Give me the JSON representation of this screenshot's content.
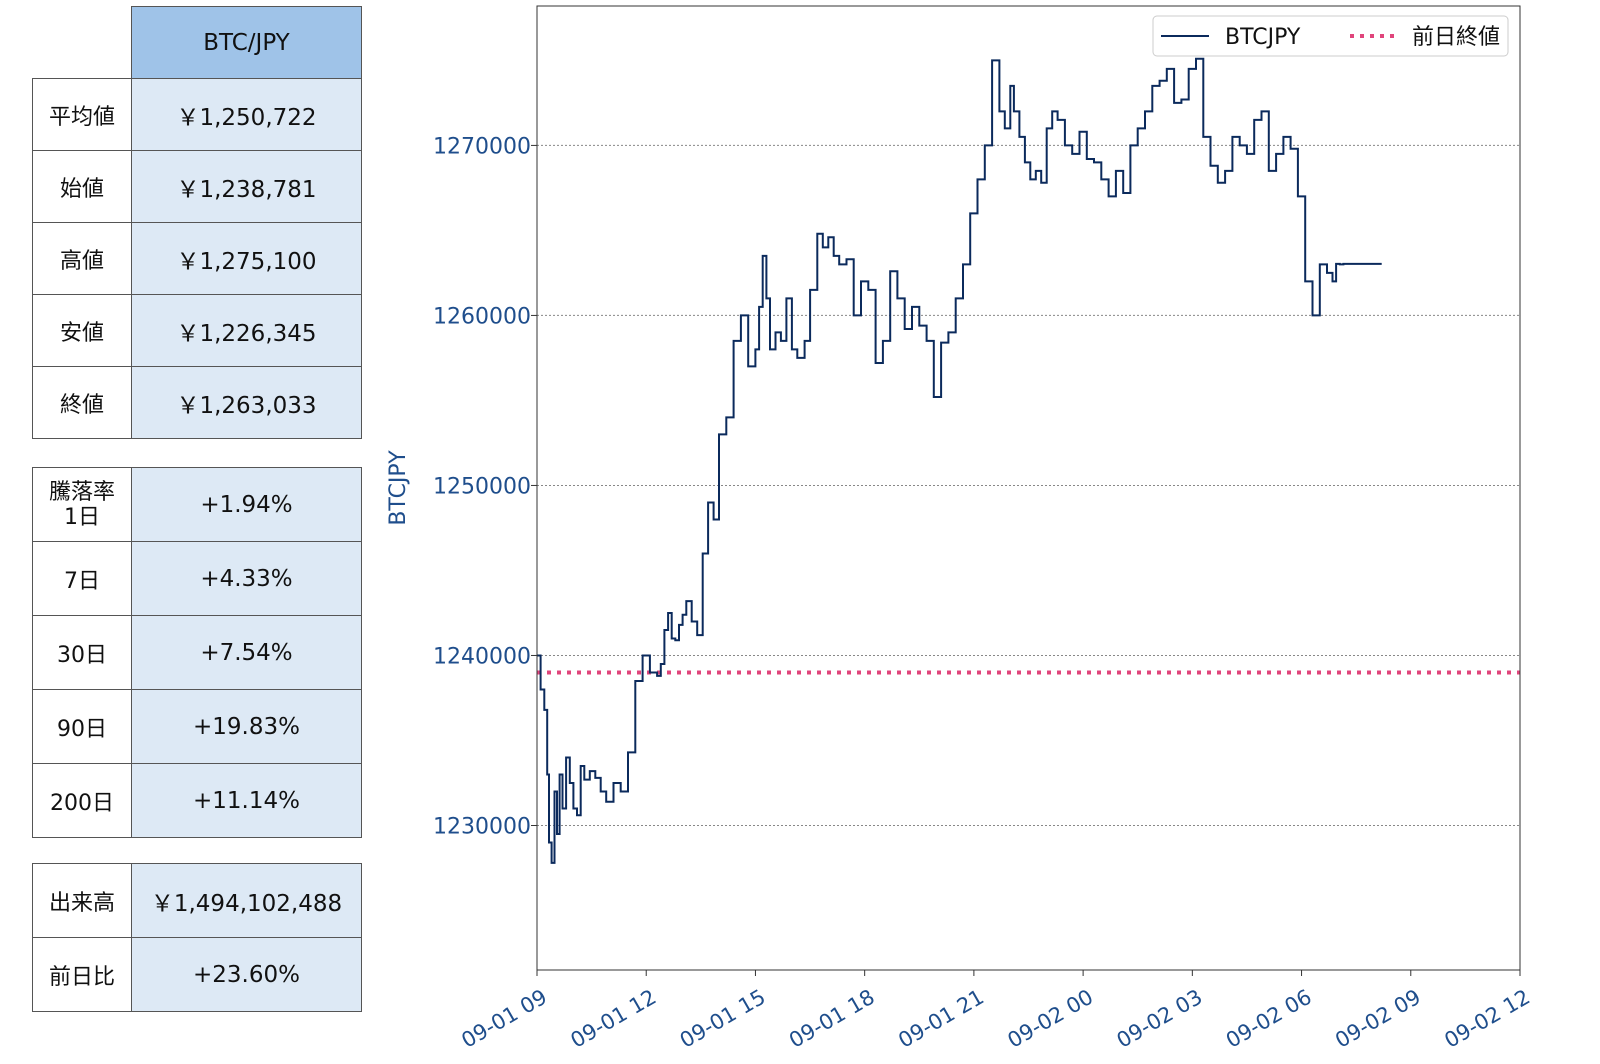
{
  "stats_table": {
    "header": "BTC/JPY",
    "rows": [
      {
        "label": "平均値",
        "value": "￥1,250,722"
      },
      {
        "label": "始値",
        "value": "￥1,238,781"
      },
      {
        "label": "高値",
        "value": "￥1,275,100"
      },
      {
        "label": "安値",
        "value": "￥1,226,345"
      },
      {
        "label": "終値",
        "value": "￥1,263,033"
      }
    ]
  },
  "change_table": {
    "rows": [
      {
        "label_line1": "騰落率",
        "label_line2": "1日",
        "value": "+1.94%"
      },
      {
        "label": "7日",
        "value": "+4.33%"
      },
      {
        "label": "30日",
        "value": "+7.54%"
      },
      {
        "label": "90日",
        "value": "+19.83%"
      },
      {
        "label": "200日",
        "value": "+11.14%"
      }
    ]
  },
  "volume_table": {
    "rows": [
      {
        "label": "出来高",
        "value": "￥1,494,102,488"
      },
      {
        "label": "前日比",
        "value": "+23.60%"
      }
    ]
  },
  "colors": {
    "line": "#0b2a5c",
    "ref_line": "#e0457b",
    "axis_text": "#1f4e8c",
    "header_bg": "#9fc3e8",
    "value_bg": "#dde9f5"
  },
  "chart_data": {
    "type": "line",
    "ylabel": "BTCJPY",
    "ylim": [
      1221500,
      1278200
    ],
    "yticks": [
      1230000,
      1240000,
      1250000,
      1260000,
      1270000
    ],
    "ytick_labels": [
      "1230000",
      "1240000",
      "1250000",
      "1260000",
      "1270000"
    ],
    "x_ticks": [
      "09-01 09",
      "09-01 12",
      "09-01 15",
      "09-01 18",
      "09-01 21",
      "09-02 00",
      "09-02 03",
      "09-02 06",
      "09-02 09",
      "09-02 12"
    ],
    "x_range_hours": [
      0,
      27
    ],
    "grid": "horizontal",
    "legend": {
      "placement": "top-right",
      "entries": [
        "BTCJPY",
        "前日終値"
      ]
    },
    "ref_line": {
      "name": "前日終値",
      "value": 1239000,
      "style": "dotted"
    },
    "series": [
      {
        "name": "BTCJPY",
        "x_hours": [
          0.0,
          0.1,
          0.2,
          0.28,
          0.33,
          0.4,
          0.48,
          0.55,
          0.62,
          0.7,
          0.8,
          0.9,
          1.0,
          1.1,
          1.2,
          1.3,
          1.45,
          1.6,
          1.75,
          1.9,
          2.1,
          2.3,
          2.5,
          2.7,
          2.9,
          3.1,
          3.3,
          3.4,
          3.5,
          3.6,
          3.7,
          3.8,
          3.9,
          4.0,
          4.1,
          4.25,
          4.4,
          4.55,
          4.7,
          4.85,
          5.0,
          5.2,
          5.4,
          5.6,
          5.8,
          6.0,
          6.1,
          6.2,
          6.3,
          6.4,
          6.55,
          6.7,
          6.85,
          7.0,
          7.15,
          7.35,
          7.5,
          7.7,
          7.85,
          8.0,
          8.15,
          8.3,
          8.5,
          8.7,
          8.9,
          9.1,
          9.3,
          9.5,
          9.7,
          9.9,
          10.1,
          10.3,
          10.5,
          10.7,
          10.9,
          11.1,
          11.3,
          11.5,
          11.7,
          11.9,
          12.1,
          12.3,
          12.5,
          12.7,
          12.85,
          13.0,
          13.1,
          13.25,
          13.4,
          13.55,
          13.7,
          13.85,
          14.0,
          14.15,
          14.3,
          14.5,
          14.7,
          14.9,
          15.1,
          15.3,
          15.5,
          15.7,
          15.9,
          16.1,
          16.3,
          16.5,
          16.7,
          16.9,
          17.1,
          17.3,
          17.5,
          17.7,
          17.9,
          18.1,
          18.3,
          18.5,
          18.7,
          18.9,
          19.1,
          19.3,
          19.5,
          19.7,
          19.9,
          20.1,
          20.3,
          20.5,
          20.7,
          20.9,
          21.1,
          21.3,
          21.5,
          21.7,
          21.85,
          21.95,
          22.05,
          22.15,
          22.3,
          22.45,
          22.6,
          22.75,
          22.9,
          23.0,
          23.05,
          23.1,
          23.15,
          23.2
        ],
        "values": [
          1240000,
          1238000,
          1236800,
          1233000,
          1229000,
          1227800,
          1232000,
          1229500,
          1233000,
          1231000,
          1234000,
          1232500,
          1231000,
          1230600,
          1233500,
          1232700,
          1233200,
          1232800,
          1232000,
          1231400,
          1232500,
          1232000,
          1234300,
          1238500,
          1240000,
          1239000,
          1238800,
          1239500,
          1241500,
          1242500,
          1241000,
          1240900,
          1241800,
          1242400,
          1243200,
          1242000,
          1241200,
          1246000,
          1249000,
          1248000,
          1253000,
          1254000,
          1258500,
          1260000,
          1257000,
          1258000,
          1260500,
          1263500,
          1261000,
          1258000,
          1259000,
          1258500,
          1261000,
          1258000,
          1257500,
          1258500,
          1261500,
          1264800,
          1264000,
          1264600,
          1263500,
          1263000,
          1263300,
          1260000,
          1262000,
          1261500,
          1257200,
          1258500,
          1262600,
          1261000,
          1259200,
          1260500,
          1259400,
          1258500,
          1255200,
          1258400,
          1259000,
          1261000,
          1263000,
          1266000,
          1268000,
          1270000,
          1275000,
          1272000,
          1271000,
          1273500,
          1272000,
          1270500,
          1269000,
          1268000,
          1268500,
          1267800,
          1271000,
          1272000,
          1271500,
          1270000,
          1269500,
          1270800,
          1269200,
          1269000,
          1268000,
          1267000,
          1268500,
          1267200,
          1270000,
          1271000,
          1272000,
          1273500,
          1273800,
          1274500,
          1272500,
          1272700,
          1274500,
          1275100,
          1270500,
          1268800,
          1267800,
          1268500,
          1270500,
          1270000,
          1269500,
          1271500,
          1272000,
          1268500,
          1269500,
          1270500,
          1269800,
          1267000,
          1262000,
          1260000,
          1263000,
          1262500,
          1262000,
          1263033,
          1263000,
          1263033,
          1263033,
          1263033,
          1263033,
          1263033,
          1263033,
          1263033,
          1263033,
          1263033,
          1263033,
          1263033
        ]
      }
    ]
  }
}
